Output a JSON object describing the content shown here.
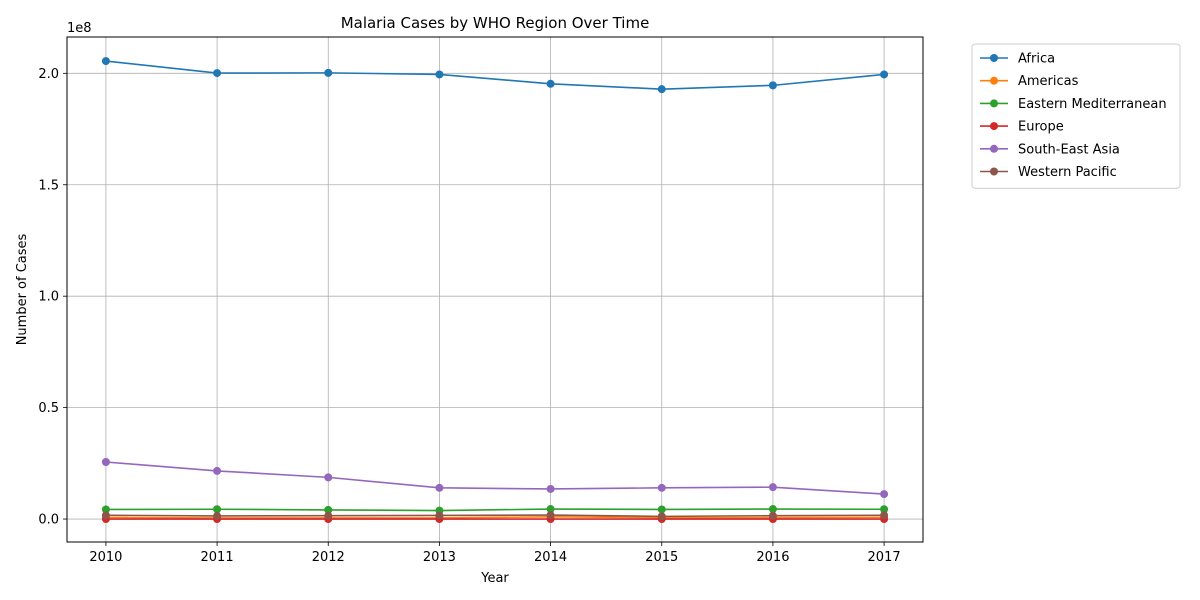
{
  "chart_data": {
    "type": "line",
    "title": "Malaria Cases by WHO Region Over Time",
    "xlabel": "Year",
    "ylabel": "Number of Cases",
    "y_offset_label": "1e8",
    "x": [
      2010,
      2011,
      2012,
      2013,
      2014,
      2015,
      2016,
      2017
    ],
    "x_ticks": [
      "2010",
      "2011",
      "2012",
      "2013",
      "2014",
      "2015",
      "2016",
      "2017"
    ],
    "y_ticks": [
      0.0,
      0.5,
      1.0,
      1.5,
      2.0
    ],
    "y_tick_labels": [
      "0.0",
      "0.5",
      "1.0",
      "1.5",
      "2.0"
    ],
    "y_scale": 100000000,
    "xlim": [
      2009.65,
      2017.35
    ],
    "ylim": [
      -10300000,
      216300000
    ],
    "grid": true,
    "legend_position": "outside-top-right",
    "series": [
      {
        "name": "Africa",
        "color": "#1f77b4",
        "values": [
          205500000,
          200100000,
          200200000,
          199500000,
          195300000,
          192900000,
          194600000,
          199500000
        ]
      },
      {
        "name": "Americas",
        "color": "#ff7f0e",
        "values": [
          700000,
          500000,
          500000,
          500000,
          1000000,
          600000,
          600000,
          800000
        ]
      },
      {
        "name": "Eastern Mediterranean",
        "color": "#2ca02c",
        "values": [
          4300000,
          4400000,
          4100000,
          3800000,
          4500000,
          4300000,
          4500000,
          4400000
        ]
      },
      {
        "name": "Europe",
        "color": "#d62728",
        "values": [
          0,
          0,
          0,
          0,
          0,
          0,
          0,
          0
        ]
      },
      {
        "name": "South-East Asia",
        "color": "#9467bd",
        "values": [
          25600000,
          21600000,
          18700000,
          14000000,
          13500000,
          14000000,
          14300000,
          11200000
        ]
      },
      {
        "name": "Western Pacific",
        "color": "#8c564b",
        "values": [
          1700000,
          1400000,
          1500000,
          1600000,
          1800000,
          1200000,
          1500000,
          1700000
        ]
      }
    ]
  }
}
